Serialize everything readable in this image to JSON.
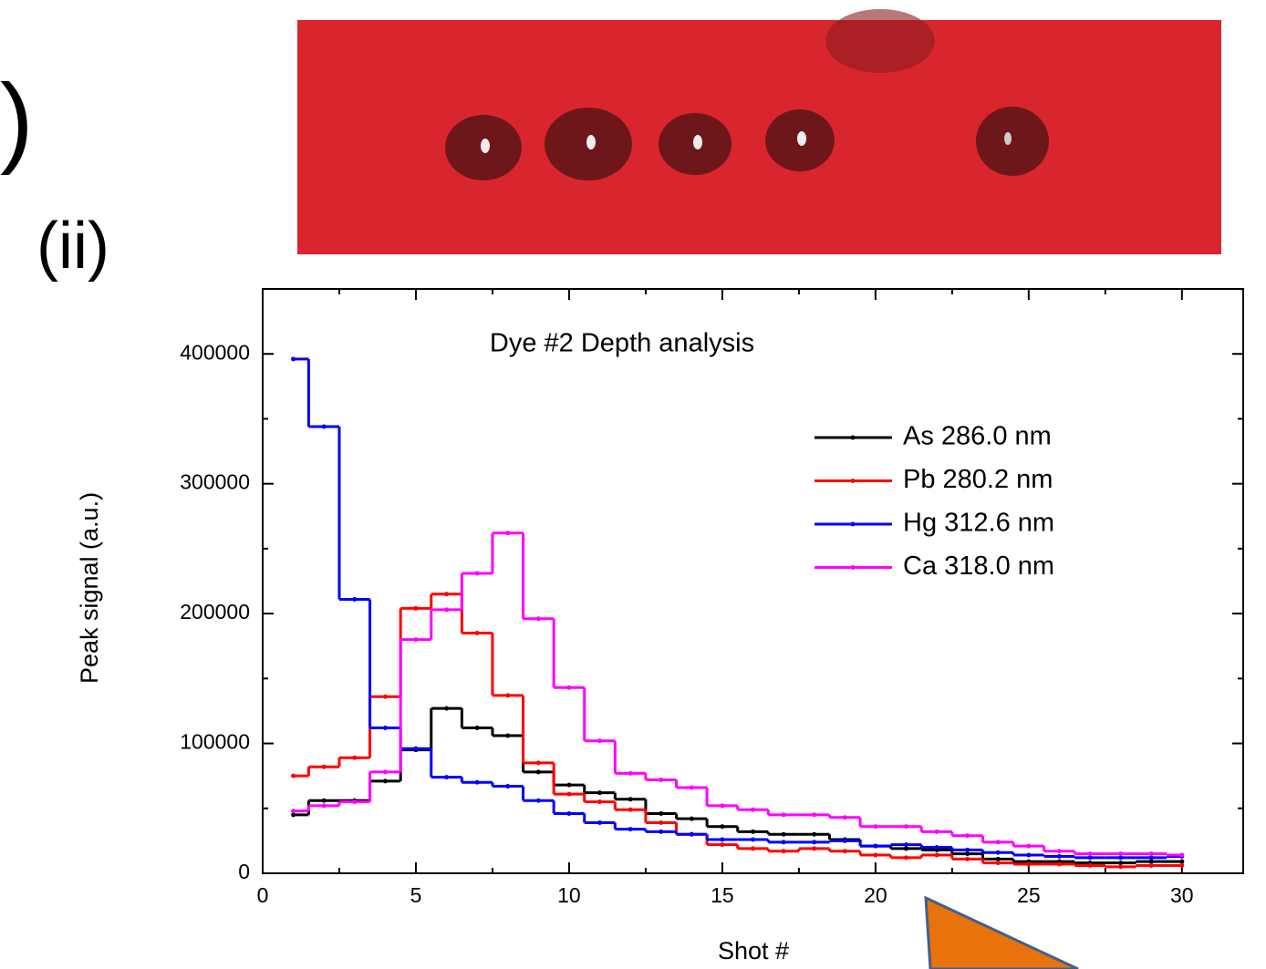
{
  "panel_labels": [
    ")",
    "(ii)"
  ],
  "chart_data": {
    "type": "step-line",
    "title": "Dye #2 Depth analysis",
    "x_label": "Shot #",
    "y_label": "Peak signal (a.u.)",
    "x": [
      1,
      2,
      3,
      4,
      5,
      6,
      7,
      8,
      9,
      10,
      11,
      12,
      13,
      14,
      15,
      16,
      17,
      18,
      19,
      20,
      21,
      22,
      23,
      24,
      25,
      26,
      27,
      28,
      29,
      30
    ],
    "series": [
      {
        "name": "As 286.0 nm",
        "color": "#000000",
        "values": [
          45000,
          56000,
          56000,
          71000,
          95000,
          127000,
          112000,
          106000,
          78000,
          68000,
          62000,
          57000,
          46000,
          42000,
          36000,
          32000,
          30000,
          30000,
          26000,
          21000,
          19000,
          18000,
          15000,
          11000,
          9000,
          9000,
          8000,
          8000,
          9000,
          9000
        ]
      },
      {
        "name": "Pb 280.2 nm",
        "color": "#ff0000",
        "values": [
          75000,
          82000,
          89000,
          136000,
          204000,
          215000,
          185000,
          137000,
          85000,
          61000,
          55000,
          49000,
          39000,
          30000,
          22000,
          19000,
          17000,
          19000,
          17000,
          14000,
          12000,
          14000,
          11000,
          8000,
          7000,
          7000,
          6000,
          5000,
          6000,
          6000
        ]
      },
      {
        "name": "Hg 312.6 nm",
        "color": "#0000ff",
        "values": [
          396000,
          344000,
          211000,
          112000,
          96000,
          74000,
          70000,
          67000,
          56000,
          46000,
          39000,
          34000,
          32000,
          30000,
          26000,
          26000,
          24000,
          24000,
          25000,
          21000,
          22000,
          20000,
          18000,
          16000,
          14000,
          13000,
          12000,
          12000,
          12000,
          13000
        ]
      },
      {
        "name": "Ca 318.0 nm",
        "color": "#ff00ff",
        "values": [
          48000,
          52000,
          55000,
          78000,
          180000,
          203000,
          231000,
          262000,
          196000,
          143000,
          102000,
          77000,
          72000,
          66000,
          52000,
          49000,
          45000,
          45000,
          43000,
          36000,
          36000,
          32000,
          29000,
          24000,
          21000,
          17000,
          15000,
          15000,
          15000,
          14000
        ]
      }
    ],
    "xlim": [
      0,
      32
    ],
    "xticks": [
      0,
      5,
      10,
      15,
      20,
      25,
      30
    ],
    "ylim": [
      0,
      450000
    ],
    "yticks": [
      0,
      100000,
      200000,
      300000,
      400000
    ],
    "legend": "upper right"
  }
}
